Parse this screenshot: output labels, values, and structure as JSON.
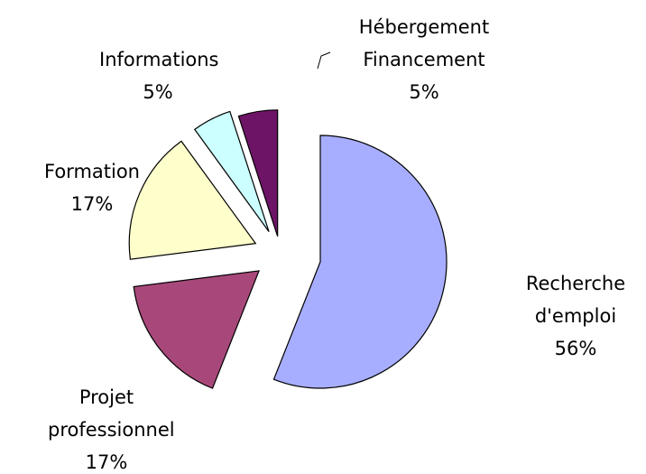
{
  "chart_data": {
    "type": "pie",
    "categories": [
      "Recherche d'emploi",
      "Projet professionnel",
      "Formation",
      "Informations",
      "Hébergement Financement"
    ],
    "values": [
      56,
      17,
      17,
      5,
      5
    ],
    "value_labels": [
      "56%",
      "17%",
      "17%",
      "5%",
      "5%"
    ],
    "colors": [
      "#a8aeff",
      "#a8487a",
      "#ffffcc",
      "#ccffff",
      "#6e1466"
    ]
  }
}
